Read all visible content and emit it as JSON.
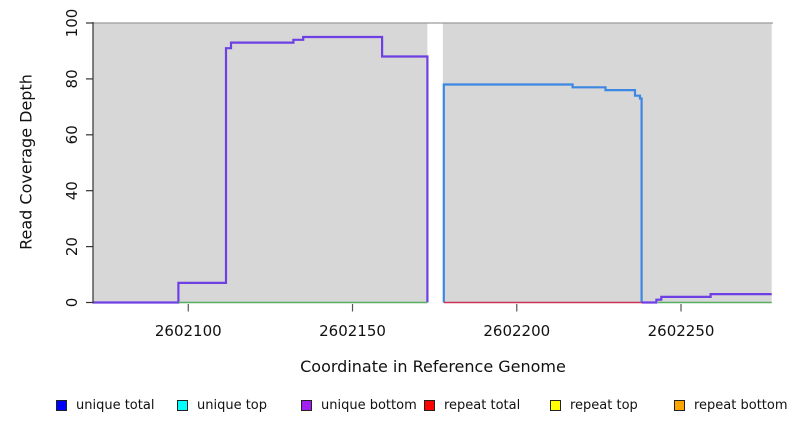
{
  "figure": {
    "xlabel": "Coordinate in Reference Genome",
    "ylabel": "Read Coverage Depth"
  },
  "axis": {
    "color": "#333333",
    "tick_color": "#555555",
    "box_color": "#9a9a9a",
    "label_color": "#111111"
  },
  "chart_data": {
    "type": "line",
    "title": "",
    "xlabel": "Coordinate in Reference Genome",
    "ylabel": "Read Coverage Depth",
    "xlim": [
      2602071,
      2602278
    ],
    "ylim": [
      0,
      100
    ],
    "x_ticks": [
      2602100,
      2602150,
      2602200,
      2602250
    ],
    "y_ticks": [
      0,
      20,
      40,
      60,
      80,
      100
    ],
    "grid": false,
    "panel_background": "#d7d7d7",
    "panel_blocks": [
      {
        "name": "left-gray-panel",
        "x0": 2602071,
        "x1": 2602172.8
      },
      {
        "name": "right-gray-panel",
        "x0": 2602177.5,
        "x1": 2602277.6
      }
    ],
    "coverage_gap": {
      "x0": 2602172.8,
      "x1": 2602177.5
    },
    "series": [
      {
        "name": "unique bottom coverage (left block)",
        "color": "#6e3fe3",
        "width": 2.2,
        "points": [
          [
            2602071,
            0
          ],
          [
            2602097,
            0
          ],
          [
            2602097,
            7
          ],
          [
            2602111.5,
            7
          ],
          [
            2602111.5,
            91
          ],
          [
            2602113,
            91
          ],
          [
            2602113,
            93
          ],
          [
            2602132,
            93
          ],
          [
            2602132,
            94
          ],
          [
            2602135,
            94
          ],
          [
            2602135,
            95
          ],
          [
            2602159,
            95
          ],
          [
            2602159,
            88
          ],
          [
            2602172.8,
            88
          ],
          [
            2602172.8,
            0
          ]
        ]
      },
      {
        "name": "unique top coverage (right block)",
        "color": "#3c87e3",
        "width": 2.2,
        "points": [
          [
            2602177.8,
            0
          ],
          [
            2602177.8,
            78
          ],
          [
            2602217,
            78
          ],
          [
            2602217,
            77
          ],
          [
            2602227,
            77
          ],
          [
            2602227,
            76
          ],
          [
            2602236,
            76
          ],
          [
            2602236,
            74
          ],
          [
            2602237.5,
            74
          ],
          [
            2602237.5,
            73
          ],
          [
            2602238,
            73
          ],
          [
            2602238,
            0
          ]
        ]
      },
      {
        "name": "unique bottom coverage (right tail)",
        "color": "#6e3fe3",
        "width": 2.2,
        "points": [
          [
            2602238,
            0
          ],
          [
            2602242.5,
            0
          ],
          [
            2602242.5,
            1
          ],
          [
            2602244,
            1
          ],
          [
            2602244,
            2
          ],
          [
            2602259,
            2
          ],
          [
            2602259,
            3
          ],
          [
            2602277.6,
            3
          ]
        ]
      },
      {
        "name": "zero baseline left (green)",
        "color": "#56ae60",
        "width": 1.6,
        "points": [
          [
            2602097,
            0
          ],
          [
            2602172.8,
            0
          ]
        ]
      },
      {
        "name": "zero baseline right (green)",
        "color": "#56ae60",
        "width": 1.6,
        "points": [
          [
            2602243,
            0
          ],
          [
            2602277.6,
            0
          ]
        ]
      },
      {
        "name": "zero baseline middle (red)",
        "color": "#cd3358",
        "width": 1.6,
        "points": [
          [
            2602177.8,
            0
          ],
          [
            2602238,
            0
          ]
        ]
      }
    ],
    "legend": {
      "position": "bottom",
      "entries": [
        {
          "label": "unique total",
          "color": "#0000ff"
        },
        {
          "label": "unique top",
          "color": "#00ffff"
        },
        {
          "label": "unique bottom",
          "color": "#a020f0"
        },
        {
          "label": "repeat total",
          "color": "#ff0000"
        },
        {
          "label": "repeat top",
          "color": "#ffff00"
        },
        {
          "label": "repeat bottom",
          "color": "#ffa500"
        }
      ]
    }
  }
}
